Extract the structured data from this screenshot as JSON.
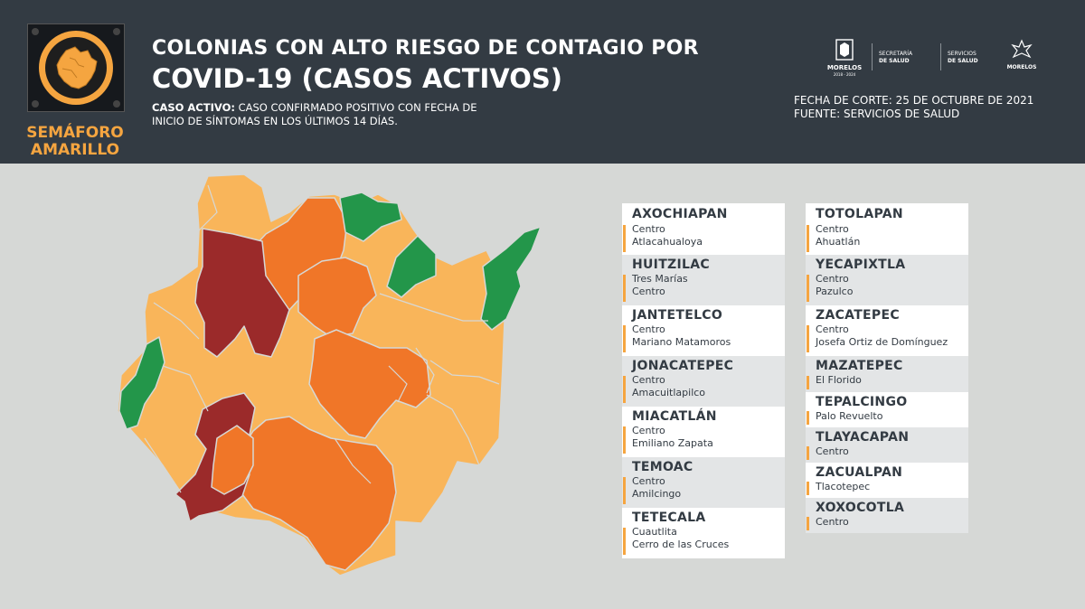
{
  "header": {
    "badge": {
      "line1": "SEMÁFORO",
      "line2": "AMARILLO"
    },
    "title_line1": "COLONIAS CON ALTO RIESGO DE CONTAGIO POR",
    "title_line2": "COVID-19 (CASOS ACTIVOS)",
    "definition_label": "CASO ACTIVO:",
    "definition_text": " CASO CONFIRMADO POSITIVO CON FECHA DE",
    "definition_line2": "INICIO DE SÍNTOMAS EN LOS ÚLTIMOS 14 DÍAS.",
    "cutoff_date": "FECHA DE CORTE: 25 DE OCTUBRE DE 2021",
    "source": "FUENTE: SERVICIOS DE SALUD",
    "logos": {
      "morelos": "MORELOS",
      "morelos_years": "2018 - 2024",
      "secretaria_l1": "SECRETARÍA",
      "secretaria_l2": "DE SALUD",
      "servicios_l1": "SERVICIOS",
      "servicios_l2": "DE SALUD",
      "morelos2": "MORELOS"
    }
  },
  "colors": {
    "header_bg": "#333b43",
    "page_bg": "#d6d8d6",
    "accent_yellow": "#f5a540",
    "red": "#9b2a2a",
    "orange": "#f07628",
    "light_orange": "#f9b55a",
    "green": "#23964a"
  },
  "municipalities_left": [
    {
      "name": "AXOCHIAPAN",
      "colonias": [
        "Centro",
        "Atlacahualoya"
      ]
    },
    {
      "name": "HUITZILAC",
      "colonias": [
        "Tres Marías",
        "Centro"
      ]
    },
    {
      "name": "JANTETELCO",
      "colonias": [
        "Centro",
        "Mariano Matamoros"
      ]
    },
    {
      "name": "JONACATEPEC",
      "colonias": [
        "Centro",
        "Amacuitlapilco"
      ]
    },
    {
      "name": "MIACATLÁN",
      "colonias": [
        "Centro",
        "Emiliano Zapata"
      ]
    },
    {
      "name": "TEMOAC",
      "colonias": [
        "Centro",
        "Amilcingo"
      ]
    },
    {
      "name": "TETECALA",
      "colonias": [
        "Cuautlita",
        "Cerro de las Cruces"
      ]
    }
  ],
  "municipalities_right": [
    {
      "name": "TOTOLAPAN",
      "colonias": [
        "Centro",
        "Ahuatlán"
      ]
    },
    {
      "name": "YECAPIXTLA",
      "colonias": [
        "Centro",
        "Pazulco"
      ]
    },
    {
      "name": "ZACATEPEC",
      "colonias": [
        "Centro",
        "Josefa Ortiz de Domínguez"
      ]
    },
    {
      "name": "MAZATEPEC",
      "colonias": [
        "El Florido"
      ]
    },
    {
      "name": "TEPALCINGO",
      "colonias": [
        "Palo Revuelto"
      ]
    },
    {
      "name": "TLAYACAPAN",
      "colonias": [
        "Centro"
      ]
    },
    {
      "name": "ZACUALPAN",
      "colonias": [
        "Tlacotepec"
      ]
    },
    {
      "name": "XOXOCOTLA",
      "colonias": [
        "Centro"
      ]
    }
  ]
}
